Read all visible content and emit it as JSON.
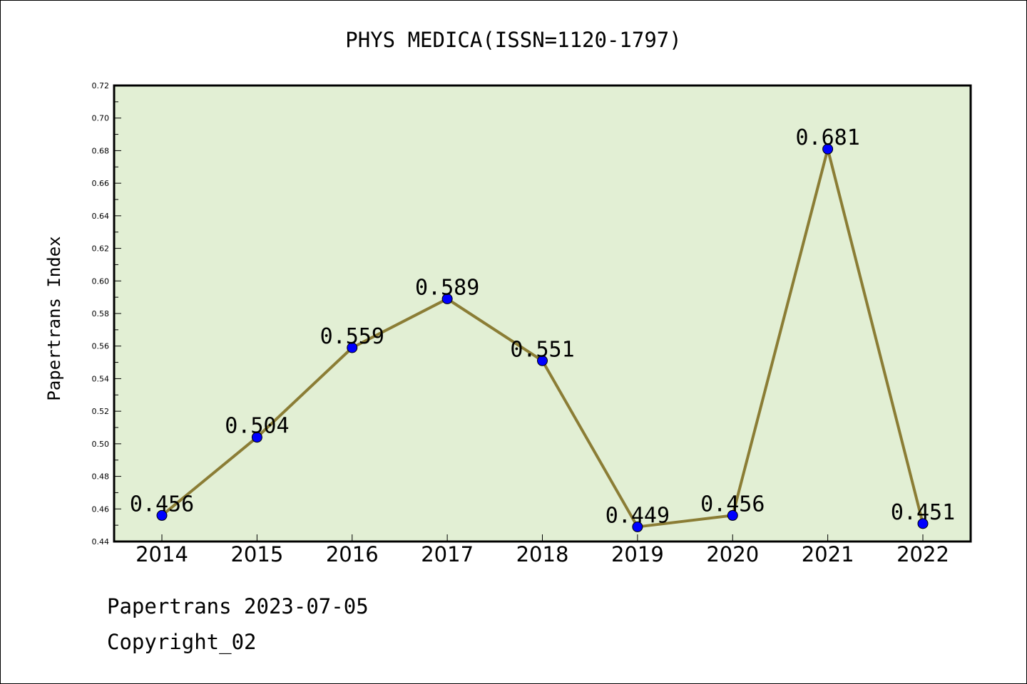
{
  "chart_data": {
    "type": "line",
    "title": "PHYS MEDICA(ISSN=1120-1797)",
    "xlabel": "",
    "ylabel": "Papertrans Index",
    "categories": [
      "2014",
      "2015",
      "2016",
      "2017",
      "2018",
      "2019",
      "2020",
      "2021",
      "2022"
    ],
    "values": [
      0.456,
      0.504,
      0.559,
      0.589,
      0.551,
      0.449,
      0.456,
      0.681,
      0.451
    ],
    "data_labels": [
      "0.456",
      "0.504",
      "0.559",
      "0.589",
      "0.551",
      "0.449",
      "0.456",
      "0.681",
      "0.451"
    ],
    "ylim": [
      0.44,
      0.72
    ],
    "yticks": [
      "0.44",
      "0.46",
      "0.48",
      "0.50",
      "0.52",
      "0.54",
      "0.56",
      "0.58",
      "0.60",
      "0.62",
      "0.64",
      "0.66",
      "0.68",
      "0.70",
      "0.72"
    ],
    "grid": false,
    "legend": "none",
    "colors": {
      "plot_background": "#e2efd4",
      "line": "#8b7d35",
      "marker": "#0000ff"
    }
  },
  "footer": {
    "line1": "Papertrans 2023-07-05",
    "line2": "Copyright_02"
  }
}
